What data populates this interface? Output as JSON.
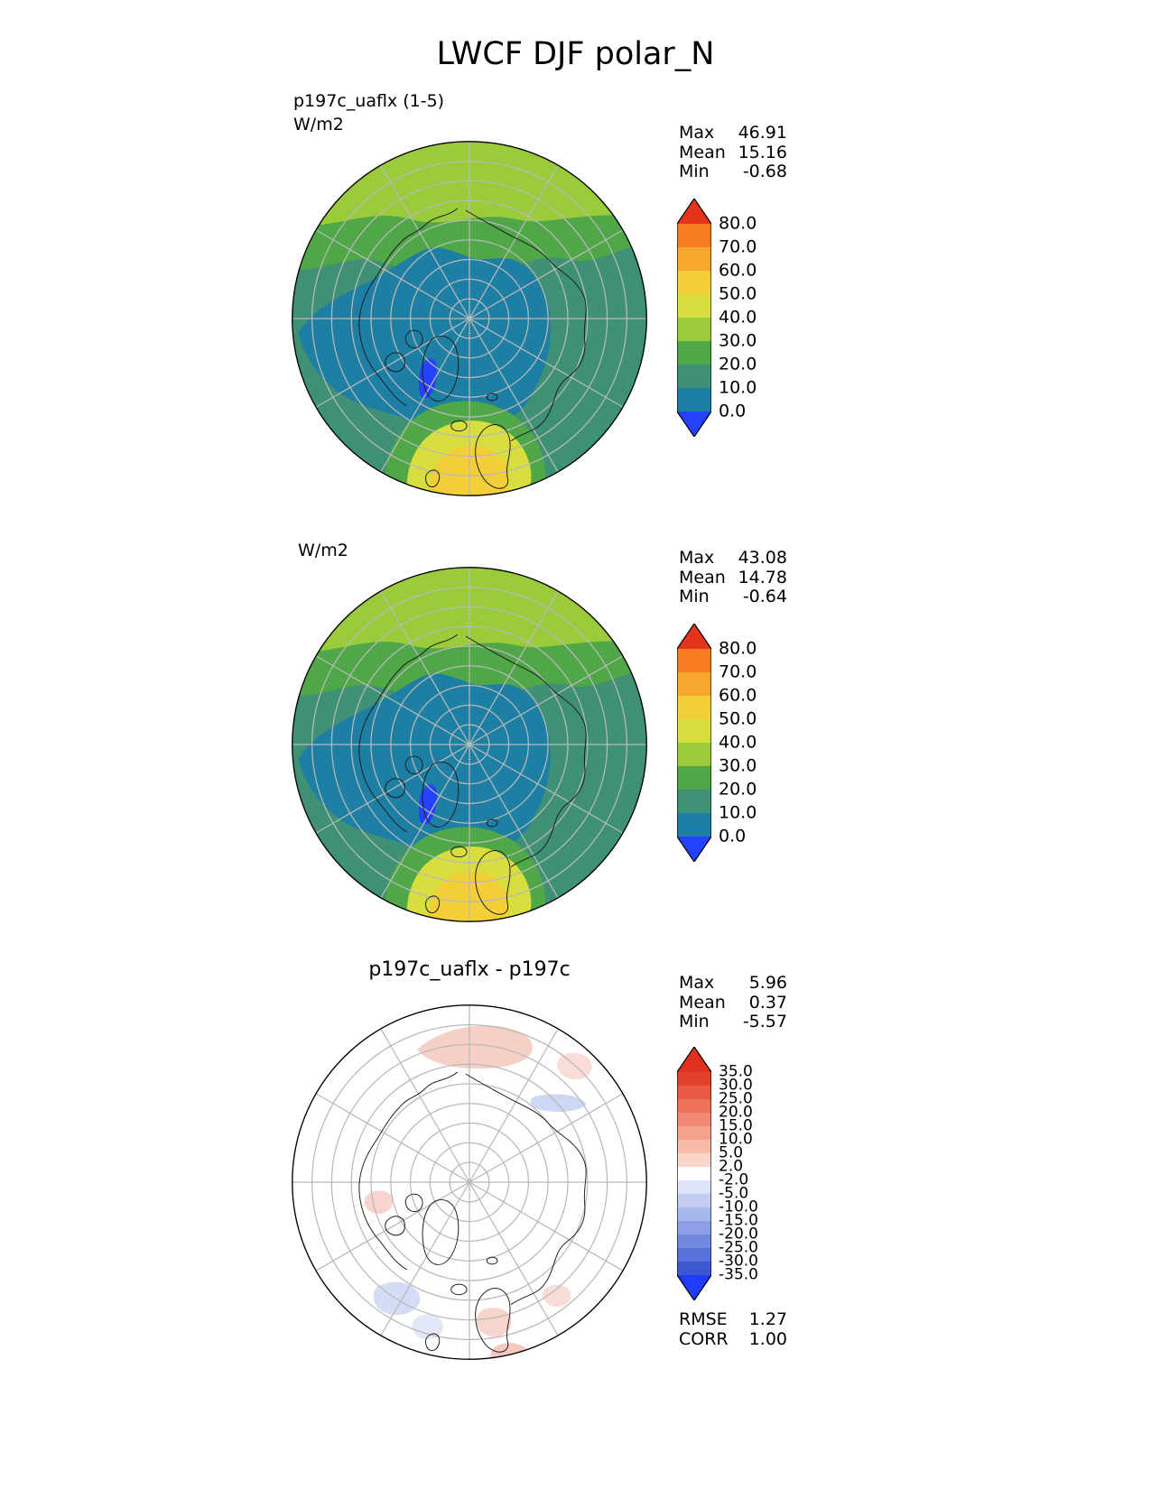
{
  "title": "LWCF DJF polar_N",
  "panels": [
    {
      "label_lines": [
        "p197c_uaflx (1-5)",
        "W/m2"
      ],
      "stats": [
        {
          "label": "Max",
          "value": "46.91"
        },
        {
          "label": "Mean",
          "value": "15.16"
        },
        {
          "label": "Min",
          "value": "-0.68"
        }
      ],
      "colorbar": {
        "ticks": [
          "80.0",
          "70.0",
          "60.0",
          "50.0",
          "40.0",
          "30.0",
          "20.0",
          "10.0",
          "0.0"
        ],
        "segment_colors": [
          "#f57d20",
          "#f5a72e",
          "#f2cf38",
          "#d8de3e",
          "#9acb3b",
          "#4fa747",
          "#3f9175",
          "#1d7fa4"
        ],
        "over_color": "#e5331c",
        "under_color": "#2442ff"
      }
    },
    {
      "label_lines": [
        "W/m2"
      ],
      "stats": [
        {
          "label": "Max",
          "value": "43.08"
        },
        {
          "label": "Mean",
          "value": "14.78"
        },
        {
          "label": "Min",
          "value": "-0.64"
        }
      ],
      "colorbar": {
        "ticks": [
          "80.0",
          "70.0",
          "60.0",
          "50.0",
          "40.0",
          "30.0",
          "20.0",
          "10.0",
          "0.0"
        ],
        "segment_colors": [
          "#f57d20",
          "#f5a72e",
          "#f2cf38",
          "#d8de3e",
          "#9acb3b",
          "#4fa747",
          "#3f9175",
          "#1d7fa4"
        ],
        "over_color": "#e5331c",
        "under_color": "#2442ff"
      }
    },
    {
      "title": "p197c_uaflx - p197c",
      "stats": [
        {
          "label": "Max",
          "value": "5.96"
        },
        {
          "label": "Mean",
          "value": "0.37"
        },
        {
          "label": "Min",
          "value": "-5.57"
        }
      ],
      "colorbar": {
        "ticks": [
          "35.0",
          "30.0",
          "25.0",
          "20.0",
          "15.0",
          "10.0",
          "5.0",
          "2.0",
          "-2.0",
          "-5.0",
          "-10.0",
          "-15.0",
          "-20.0",
          "-25.0",
          "-30.0",
          "-35.0"
        ],
        "segment_colors": [
          "#e2422c",
          "#e85a43",
          "#ee725b",
          "#f28a74",
          "#f5a28d",
          "#f8bba8",
          "#fbd5c8",
          "#ffffff",
          "#dde3f8",
          "#c3cdf2",
          "#a8b7ec",
          "#8da0e5",
          "#7289df",
          "#5771d8",
          "#3c59d1"
        ],
        "over_color": "#e0301e",
        "under_color": "#1e3cfa"
      },
      "extra_stats": [
        {
          "label": "RMSE",
          "value": "1.27"
        },
        {
          "label": "CORR",
          "value": "1.00"
        }
      ]
    }
  ],
  "chart_data": [
    {
      "type": "heatmap",
      "subtype": "north-polar-stereographic-contour-map",
      "variable": "LWCF",
      "season": "DJF",
      "region": "polar_N",
      "label_lines": [
        "p197c_uaflx (1-5)",
        "W/m2"
      ],
      "units": "W/m2",
      "stats": {
        "max": 46.91,
        "mean": 15.16,
        "min": -0.68
      },
      "contour_levels": [
        0,
        10,
        20,
        30,
        40,
        50,
        60,
        70,
        80
      ],
      "colorbar_extend": "both",
      "legend_position": "right"
    },
    {
      "type": "heatmap",
      "subtype": "north-polar-stereographic-contour-map",
      "variable": "LWCF",
      "season": "DJF",
      "region": "polar_N",
      "label_lines": [
        "W/m2"
      ],
      "units": "W/m2",
      "stats": {
        "max": 43.08,
        "mean": 14.78,
        "min": -0.64
      },
      "contour_levels": [
        0,
        10,
        20,
        30,
        40,
        50,
        60,
        70,
        80
      ],
      "colorbar_extend": "both",
      "legend_position": "right"
    },
    {
      "type": "heatmap",
      "subtype": "north-polar-stereographic-contour-map",
      "variable": "LWCF",
      "season": "DJF",
      "region": "polar_N",
      "title": "p197c_uaflx - p197c",
      "units": "W/m2",
      "stats": {
        "max": 5.96,
        "mean": 0.37,
        "min": -5.57,
        "rmse": 1.27,
        "corr": 1.0
      },
      "contour_levels": [
        -35,
        -30,
        -25,
        -20,
        -15,
        -10,
        -5,
        -2,
        2,
        5,
        10,
        15,
        20,
        25,
        30,
        35
      ],
      "colorbar_extend": "both",
      "legend_position": "right"
    }
  ]
}
